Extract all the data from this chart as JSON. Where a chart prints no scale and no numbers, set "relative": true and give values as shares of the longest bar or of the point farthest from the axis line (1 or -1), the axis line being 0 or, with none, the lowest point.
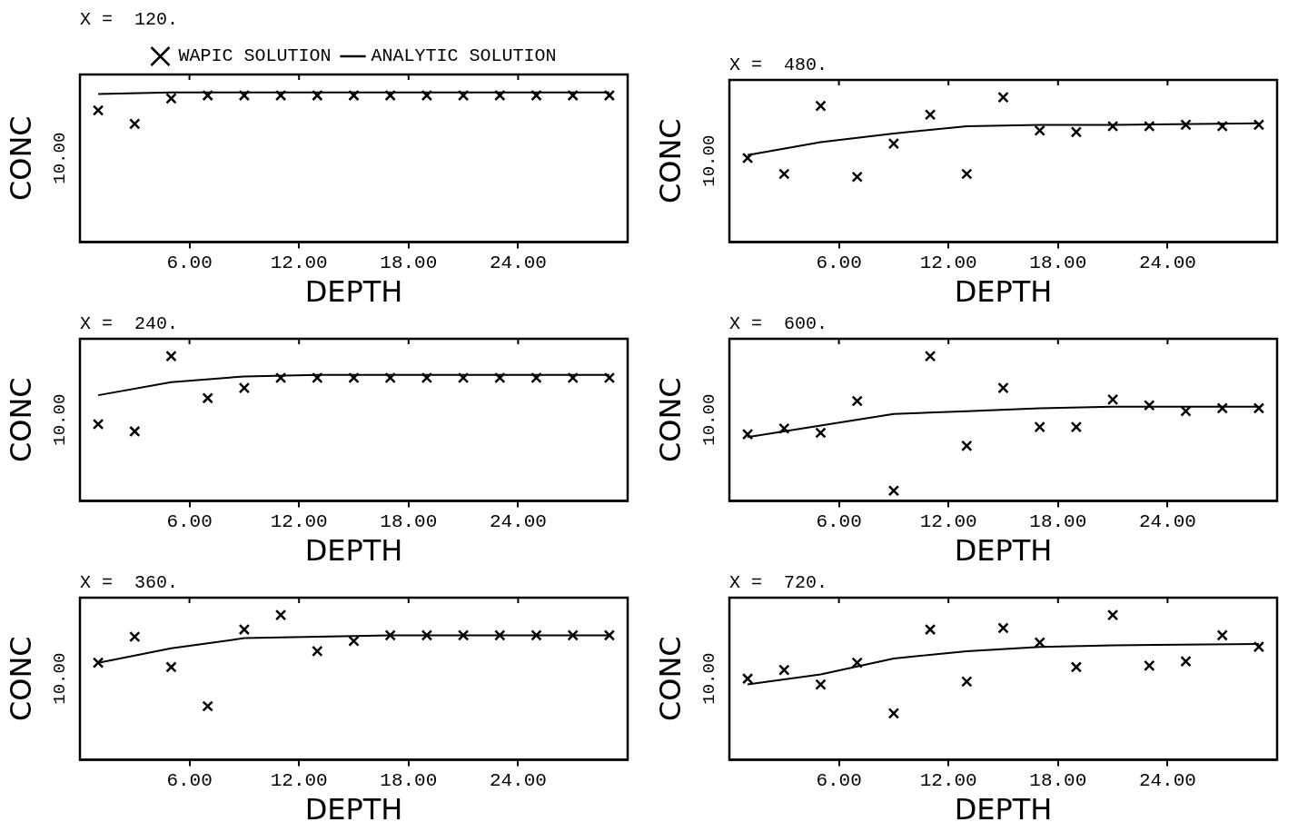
{
  "chart_data": [
    {
      "type": "scatter",
      "title": "X =  120.",
      "xlabel": "DEPTH",
      "ylabel": "CONC",
      "relative": true,
      "xlim": [
        0,
        30
      ],
      "xticks": [
        {
          "value": 6,
          "label": "6.00"
        },
        {
          "value": 12,
          "label": "12.00"
        },
        {
          "value": 18,
          "label": "18.00"
        },
        {
          "value": 24,
          "label": "24.00"
        }
      ],
      "legend": "top",
      "annotations": [
        "10.00"
      ],
      "series": [
        {
          "name": "WAPIC SOLUTION",
          "type": "scatter",
          "marker": "cross",
          "color": "#000000",
          "x": [
            1,
            3,
            5,
            7,
            9,
            11,
            13,
            15,
            17,
            19,
            21,
            23,
            25,
            27,
            29
          ],
          "values": [
            0.88,
            0.79,
            0.96,
            0.98,
            0.98,
            0.98,
            0.98,
            0.98,
            0.98,
            0.98,
            0.98,
            0.98,
            0.98,
            0.98,
            0.98
          ]
        },
        {
          "name": "ANALYTIC SOLUTION",
          "type": "line",
          "marker": "none",
          "color": "#000000",
          "x": [
            1,
            5,
            10,
            15,
            20,
            25,
            29
          ],
          "values": [
            0.99,
            1,
            1,
            1,
            1,
            1,
            1
          ]
        }
      ]
    },
    {
      "type": "scatter",
      "title": "X =  480.",
      "xlabel": "DEPTH",
      "ylabel": "CONC",
      "relative": true,
      "xlim": [
        0,
        30
      ],
      "xticks": [
        {
          "value": 6,
          "label": "6.00"
        },
        {
          "value": 12,
          "label": "12.00"
        },
        {
          "value": 18,
          "label": "18.00"
        },
        {
          "value": 24,
          "label": "24.00"
        }
      ],
      "annotations": [
        "10.00"
      ],
      "series": [
        {
          "type": "scatter",
          "marker": "cross",
          "color": "#000000",
          "x": [
            1,
            3,
            5,
            7,
            9,
            11,
            13,
            15,
            17,
            19,
            21,
            23,
            25,
            27,
            29
          ],
          "values": [
            0.58,
            0.47,
            0.94,
            0.45,
            0.68,
            0.88,
            0.47,
            1,
            0.77,
            0.76,
            0.8,
            0.8,
            0.81,
            0.8,
            0.81
          ]
        },
        {
          "type": "line",
          "marker": "none",
          "color": "#000000",
          "x": [
            1,
            5,
            9,
            13,
            17,
            21,
            29
          ],
          "values": [
            0.6,
            0.69,
            0.75,
            0.8,
            0.81,
            0.81,
            0.82
          ]
        }
      ]
    },
    {
      "type": "scatter",
      "title": "X =  240.",
      "xlabel": "DEPTH",
      "ylabel": "CONC",
      "relative": true,
      "xlim": [
        0,
        30
      ],
      "xticks": [
        {
          "value": 6,
          "label": "6.00"
        },
        {
          "value": 12,
          "label": "12.00"
        },
        {
          "value": 18,
          "label": "18.00"
        },
        {
          "value": 24,
          "label": "24.00"
        }
      ],
      "annotations": [
        "10.00"
      ],
      "series": [
        {
          "type": "scatter",
          "marker": "cross",
          "color": "#000000",
          "x": [
            1,
            3,
            5,
            7,
            9,
            11,
            13,
            15,
            17,
            19,
            21,
            23,
            25,
            27,
            29
          ],
          "values": [
            0.53,
            0.48,
            1,
            0.71,
            0.78,
            0.85,
            0.85,
            0.85,
            0.85,
            0.85,
            0.85,
            0.85,
            0.85,
            0.85,
            0.85
          ]
        },
        {
          "type": "line",
          "marker": "none",
          "color": "#000000",
          "x": [
            1,
            5,
            9,
            13,
            17,
            21,
            29
          ],
          "values": [
            0.73,
            0.82,
            0.86,
            0.87,
            0.87,
            0.87,
            0.87
          ]
        }
      ]
    },
    {
      "type": "scatter",
      "title": "X =  600.",
      "xlabel": "DEPTH",
      "ylabel": "CONC",
      "relative": true,
      "xlim": [
        0,
        30
      ],
      "xticks": [
        {
          "value": 6,
          "label": "6.00"
        },
        {
          "value": 12,
          "label": "12.00"
        },
        {
          "value": 18,
          "label": "18.00"
        },
        {
          "value": 24,
          "label": "24.00"
        }
      ],
      "annotations": [
        "10.00"
      ],
      "series": [
        {
          "type": "scatter",
          "marker": "cross",
          "color": "#000000",
          "x": [
            1,
            3,
            5,
            7,
            9,
            11,
            13,
            15,
            17,
            19,
            21,
            23,
            25,
            27,
            29
          ],
          "values": [
            0.46,
            0.5,
            0.47,
            0.69,
            0.07,
            1,
            0.38,
            0.78,
            0.51,
            0.51,
            0.7,
            0.66,
            0.62,
            0.64,
            0.64
          ]
        },
        {
          "type": "line",
          "marker": "none",
          "color": "#000000",
          "x": [
            1,
            5,
            9,
            13,
            17,
            21,
            29
          ],
          "values": [
            0.44,
            0.52,
            0.6,
            0.62,
            0.64,
            0.65,
            0.65
          ]
        }
      ]
    },
    {
      "type": "scatter",
      "title": "X =  360.",
      "xlabel": "DEPTH",
      "ylabel": "CONC",
      "relative": true,
      "xlim": [
        0,
        30
      ],
      "xticks": [
        {
          "value": 6,
          "label": "6.00"
        },
        {
          "value": 12,
          "label": "12.00"
        },
        {
          "value": 18,
          "label": "18.00"
        },
        {
          "value": 24,
          "label": "24.00"
        }
      ],
      "annotations": [
        "10.00"
      ],
      "series": [
        {
          "type": "scatter",
          "marker": "cross",
          "color": "#000000",
          "x": [
            1,
            3,
            5,
            7,
            9,
            11,
            13,
            15,
            17,
            19,
            21,
            23,
            25,
            27,
            29
          ],
          "values": [
            0.67,
            0.85,
            0.64,
            0.37,
            0.9,
            1,
            0.75,
            0.82,
            0.86,
            0.86,
            0.86,
            0.86,
            0.86,
            0.86,
            0.86
          ]
        },
        {
          "type": "line",
          "marker": "none",
          "color": "#000000",
          "x": [
            1,
            5,
            9,
            13,
            17,
            29
          ],
          "values": [
            0.67,
            0.77,
            0.84,
            0.85,
            0.86,
            0.86
          ]
        }
      ]
    },
    {
      "type": "scatter",
      "title": "X =  720.",
      "xlabel": "DEPTH",
      "ylabel": "CONC",
      "relative": true,
      "xlim": [
        0,
        30
      ],
      "xticks": [
        {
          "value": 6,
          "label": "6.00"
        },
        {
          "value": 12,
          "label": "12.00"
        },
        {
          "value": 18,
          "label": "18.00"
        },
        {
          "value": 24,
          "label": "24.00"
        }
      ],
      "annotations": [
        "10.00"
      ],
      "series": [
        {
          "type": "scatter",
          "marker": "cross",
          "color": "#000000",
          "x": [
            1,
            3,
            5,
            7,
            9,
            11,
            13,
            15,
            17,
            19,
            21,
            23,
            25,
            27,
            29
          ],
          "values": [
            0.56,
            0.62,
            0.52,
            0.67,
            0.32,
            0.9,
            0.54,
            0.91,
            0.81,
            0.64,
            1,
            0.65,
            0.68,
            0.86,
            0.78
          ]
        },
        {
          "type": "line",
          "marker": "none",
          "color": "#000000",
          "x": [
            1,
            5,
            9,
            13,
            17,
            21,
            29
          ],
          "values": [
            0.52,
            0.59,
            0.7,
            0.75,
            0.78,
            0.79,
            0.8
          ]
        }
      ]
    }
  ]
}
